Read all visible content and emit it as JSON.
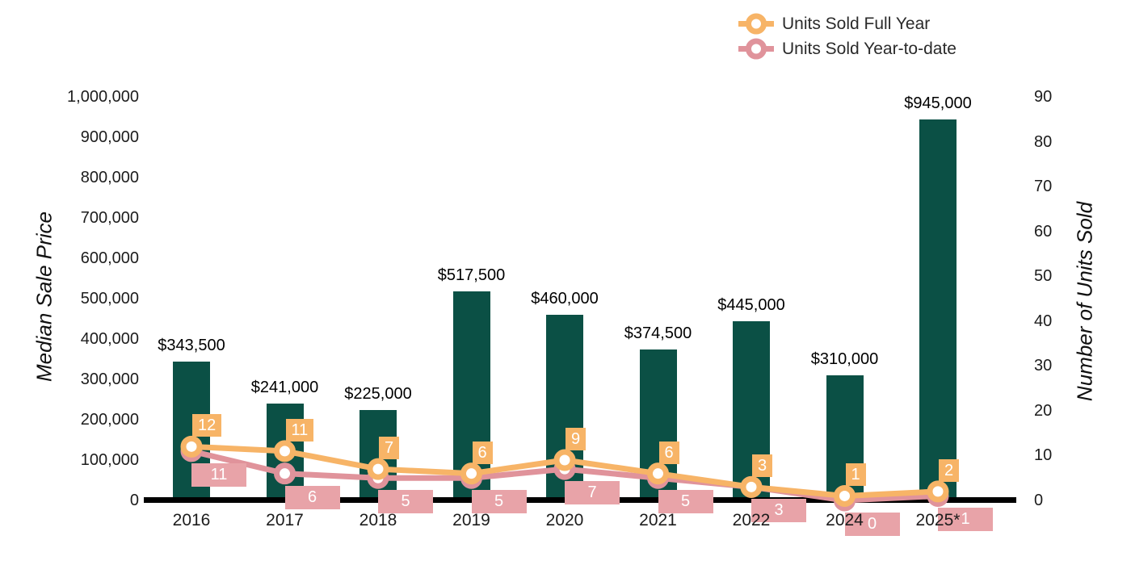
{
  "chart_data": {
    "type": "combo-bar-line",
    "categories": [
      "2016",
      "2017",
      "2018",
      "2019",
      "2020",
      "2021",
      "2022",
      "2024",
      "2025*"
    ],
    "bars": {
      "values": [
        343500,
        241000,
        225000,
        517500,
        460000,
        374500,
        445000,
        310000,
        945000
      ],
      "labels": [
        "$343,500",
        "$241,000",
        "$225,000",
        "$517,500",
        "$460,000",
        "$374,500",
        "$445,000",
        "$310,000",
        "$945,000"
      ],
      "color": "#0b5045"
    },
    "line_series": [
      {
        "name": "Units Sold Full Year",
        "values": [
          12,
          11,
          7,
          6,
          9,
          6,
          3,
          1,
          2
        ],
        "color": "#f7b467",
        "label_box_color": "#f7b467"
      },
      {
        "name": "Units Sold Year-to-date",
        "values": [
          11,
          6,
          5,
          5,
          7,
          5,
          3,
          0,
          1
        ],
        "color": "#e0939b",
        "label_box_color": "#e8a3a8"
      }
    ],
    "left_axis": {
      "title": "Median Sale Price",
      "min": 0,
      "max": 1000000,
      "step": 100000,
      "tick_labels": [
        "0",
        "100,000",
        "200,000",
        "300,000",
        "400,000",
        "500,000",
        "600,000",
        "700,000",
        "800,000",
        "900,000",
        "1,000,000"
      ]
    },
    "right_axis": {
      "title": "Number of Units Sold",
      "min": 0,
      "max": 90,
      "step": 10,
      "tick_labels": [
        "0",
        "10",
        "20",
        "30",
        "40",
        "50",
        "60",
        "70",
        "80",
        "90"
      ]
    },
    "legend_position": "top-right",
    "grid": false,
    "baseline_color": "#000000",
    "marker_center_color": "#ffffff"
  }
}
